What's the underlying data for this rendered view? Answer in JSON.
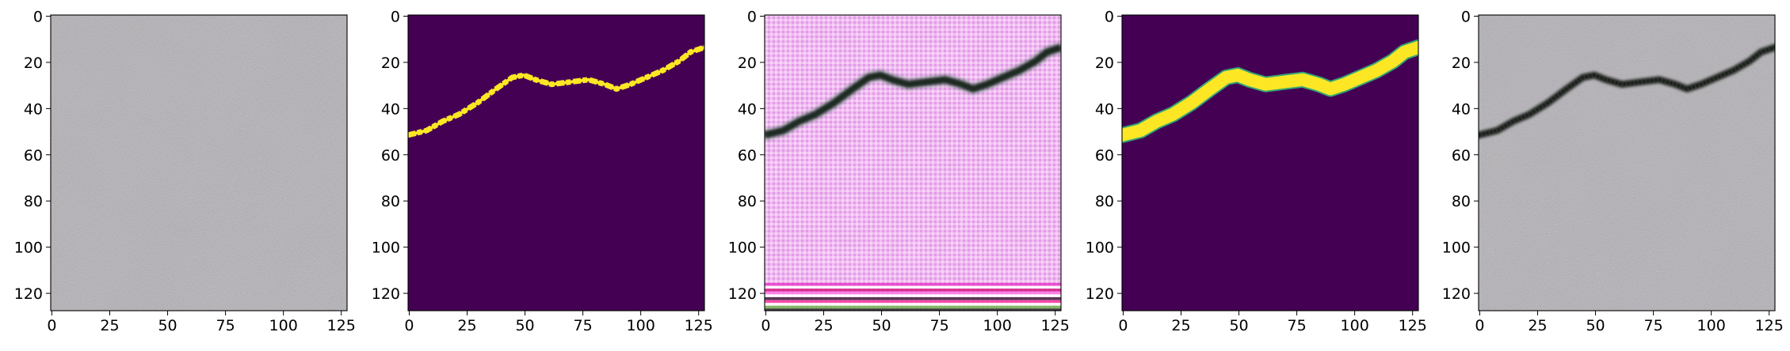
{
  "figure": {
    "panels": [
      {
        "kind": "crack-free-photo",
        "texture": "concrete-gray"
      },
      {
        "kind": "binary-crack-mask",
        "background": "#440154",
        "foreground": "#fde725"
      },
      {
        "kind": "generated-crack-image",
        "texture": "magenta-artifacts"
      },
      {
        "kind": "smooth-crack-mask",
        "background": "#440154",
        "foreground": "#fde725"
      },
      {
        "kind": "composited-crack-photo",
        "texture": "concrete-gray"
      }
    ],
    "x_ticks": [
      "0",
      "25",
      "50",
      "75",
      "100",
      "125"
    ],
    "y_ticks": [
      "0",
      "20",
      "40",
      "60",
      "80",
      "100",
      "120"
    ],
    "x_tick_values": [
      0,
      25,
      50,
      75,
      100,
      125
    ],
    "y_tick_values": [
      0,
      20,
      40,
      60,
      80,
      100,
      120
    ],
    "image_size": [
      128,
      128
    ],
    "crack_path": [
      [
        0,
        52
      ],
      [
        8,
        50
      ],
      [
        15,
        46
      ],
      [
        22,
        43
      ],
      [
        30,
        38
      ],
      [
        38,
        32
      ],
      [
        45,
        27
      ],
      [
        50,
        26
      ],
      [
        55,
        28
      ],
      [
        62,
        30
      ],
      [
        70,
        29
      ],
      [
        78,
        28
      ],
      [
        85,
        30
      ],
      [
        90,
        32
      ],
      [
        96,
        30
      ],
      [
        103,
        27
      ],
      [
        110,
        24
      ],
      [
        117,
        20
      ],
      [
        122,
        16
      ],
      [
        128,
        14
      ]
    ],
    "colors": {
      "mask_bg": "#440154",
      "mask_fg": "#fde725",
      "concrete": "#a9a7ab",
      "crack_dark": "#2b2d2a"
    }
  }
}
